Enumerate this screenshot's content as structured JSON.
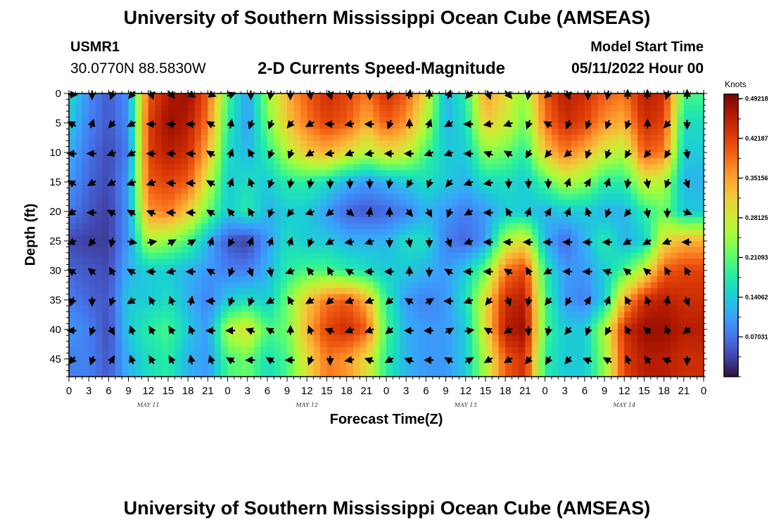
{
  "header": {
    "title": "University of Southern Mississippi Ocean Cube (AMSEAS)",
    "station": "USMR1",
    "coordinates": "30.0770N  88.5830W",
    "subtitle": "2-D Currents Speed-Magnitude",
    "model_start_label": "Model Start Time",
    "model_start_value": "05/11/2022 Hour 00"
  },
  "footer": {
    "title": "University of Southern Mississippi Ocean Cube (AMSEAS)"
  },
  "chart_data": {
    "type": "heatmap",
    "title": "2-D Currents Speed-Magnitude",
    "xlabel": "Forecast Time(Z)",
    "ylabel": "Depth (ft)",
    "x_range_hours": [
      0,
      96
    ],
    "y_range_ft": [
      0,
      48
    ],
    "y_ticks": [
      "0",
      "5",
      "10",
      "15",
      "20",
      "25",
      "30",
      "35",
      "40",
      "45"
    ],
    "x_ticks": [
      "0",
      "3",
      "6",
      "9",
      "12",
      "15",
      "18",
      "21",
      "0",
      "3",
      "6",
      "9",
      "12",
      "15",
      "18",
      "21",
      "0",
      "3",
      "6",
      "9",
      "12",
      "15",
      "18",
      "21",
      "0",
      "3",
      "6",
      "9",
      "12",
      "15",
      "18",
      "21",
      "0"
    ],
    "day_labels": [
      {
        "label": "MAY 11",
        "hour": 12
      },
      {
        "label": "MAY 12",
        "hour": 36
      },
      {
        "label": "MAY 13",
        "hour": 60
      },
      {
        "label": "MAY 14",
        "hour": 84
      }
    ],
    "colorbar": {
      "units": "Knots",
      "min": 0.0,
      "max": 0.5,
      "labels": [
        "0.49218",
        "0.42187",
        "0.35156",
        "0.28125",
        "0.21093",
        "0.14062",
        "0.07031"
      ],
      "colors": [
        "#30123b",
        "#4145ab",
        "#4675ed",
        "#39a2fc",
        "#1bcfd4",
        "#24eca6",
        "#61fc6c",
        "#a4fc3b",
        "#d1e834",
        "#f3c63a",
        "#fe9b2d",
        "#f36315",
        "#d93806",
        "#b11901",
        "#7a0402"
      ]
    },
    "depths_ft": [
      0,
      5,
      10,
      15,
      20,
      25,
      30,
      35,
      40,
      45
    ],
    "hours": [
      0,
      3,
      6,
      9,
      12,
      15,
      18,
      21,
      24,
      27,
      30,
      33,
      36,
      39,
      42,
      45,
      48,
      51,
      54,
      57,
      60,
      63,
      66,
      69,
      72,
      75,
      78,
      81,
      84,
      87,
      90,
      93
    ],
    "speed_knots": [
      [
        0.16,
        0.09,
        0.05,
        0.1,
        0.4,
        0.46,
        0.48,
        0.4,
        0.2,
        0.1,
        0.24,
        0.34,
        0.4,
        0.44,
        0.42,
        0.38,
        0.44,
        0.4,
        0.3,
        0.12,
        0.18,
        0.36,
        0.3,
        0.24,
        0.4,
        0.46,
        0.44,
        0.4,
        0.38,
        0.46,
        0.44,
        0.2
      ],
      [
        0.14,
        0.08,
        0.05,
        0.09,
        0.42,
        0.48,
        0.46,
        0.38,
        0.18,
        0.1,
        0.22,
        0.32,
        0.38,
        0.42,
        0.4,
        0.34,
        0.4,
        0.36,
        0.26,
        0.12,
        0.16,
        0.32,
        0.28,
        0.22,
        0.38,
        0.44,
        0.42,
        0.36,
        0.34,
        0.44,
        0.42,
        0.16
      ],
      [
        0.12,
        0.07,
        0.04,
        0.08,
        0.42,
        0.46,
        0.44,
        0.34,
        0.16,
        0.12,
        0.18,
        0.26,
        0.32,
        0.34,
        0.3,
        0.26,
        0.3,
        0.28,
        0.2,
        0.14,
        0.14,
        0.24,
        0.22,
        0.18,
        0.32,
        0.38,
        0.34,
        0.28,
        0.26,
        0.4,
        0.38,
        0.14
      ],
      [
        0.1,
        0.06,
        0.04,
        0.1,
        0.4,
        0.42,
        0.4,
        0.28,
        0.14,
        0.16,
        0.14,
        0.18,
        0.18,
        0.16,
        0.12,
        0.1,
        0.12,
        0.14,
        0.16,
        0.14,
        0.12,
        0.16,
        0.16,
        0.14,
        0.2,
        0.26,
        0.24,
        0.18,
        0.18,
        0.28,
        0.26,
        0.12
      ],
      [
        0.08,
        0.05,
        0.03,
        0.1,
        0.36,
        0.38,
        0.32,
        0.22,
        0.14,
        0.18,
        0.12,
        0.14,
        0.14,
        0.1,
        0.06,
        0.05,
        0.06,
        0.08,
        0.12,
        0.1,
        0.08,
        0.1,
        0.14,
        0.14,
        0.12,
        0.14,
        0.14,
        0.12,
        0.12,
        0.18,
        0.22,
        0.14
      ],
      [
        0.04,
        0.03,
        0.03,
        0.1,
        0.26,
        0.24,
        0.2,
        0.12,
        0.05,
        0.03,
        0.1,
        0.16,
        0.14,
        0.14,
        0.12,
        0.12,
        0.12,
        0.16,
        0.16,
        0.08,
        0.06,
        0.1,
        0.26,
        0.3,
        0.12,
        0.06,
        0.12,
        0.18,
        0.12,
        0.14,
        0.3,
        0.34
      ],
      [
        0.06,
        0.05,
        0.04,
        0.12,
        0.14,
        0.14,
        0.12,
        0.1,
        0.08,
        0.08,
        0.12,
        0.18,
        0.2,
        0.2,
        0.18,
        0.16,
        0.14,
        0.14,
        0.12,
        0.1,
        0.14,
        0.22,
        0.38,
        0.42,
        0.18,
        0.1,
        0.1,
        0.14,
        0.2,
        0.28,
        0.4,
        0.42
      ],
      [
        0.08,
        0.06,
        0.05,
        0.14,
        0.14,
        0.16,
        0.12,
        0.08,
        0.14,
        0.16,
        0.14,
        0.22,
        0.32,
        0.38,
        0.4,
        0.34,
        0.18,
        0.1,
        0.08,
        0.1,
        0.16,
        0.3,
        0.44,
        0.46,
        0.2,
        0.1,
        0.08,
        0.14,
        0.34,
        0.44,
        0.46,
        0.44
      ],
      [
        0.1,
        0.08,
        0.04,
        0.14,
        0.18,
        0.2,
        0.14,
        0.1,
        0.26,
        0.3,
        0.2,
        0.22,
        0.34,
        0.42,
        0.44,
        0.4,
        0.2,
        0.12,
        0.1,
        0.1,
        0.14,
        0.3,
        0.46,
        0.48,
        0.2,
        0.14,
        0.14,
        0.26,
        0.44,
        0.48,
        0.48,
        0.46
      ],
      [
        0.08,
        0.08,
        0.05,
        0.12,
        0.16,
        0.18,
        0.12,
        0.1,
        0.2,
        0.22,
        0.16,
        0.2,
        0.3,
        0.38,
        0.36,
        0.3,
        0.18,
        0.12,
        0.1,
        0.1,
        0.14,
        0.26,
        0.4,
        0.44,
        0.18,
        0.14,
        0.14,
        0.24,
        0.42,
        0.46,
        0.46,
        0.44
      ]
    ],
    "direction_deg": [
      [
        90,
        180,
        200,
        220,
        160,
        140,
        120,
        110,
        70,
        180,
        190,
        180,
        170,
        160,
        170,
        180,
        200,
        10,
        0,
        20,
        220,
        160,
        140,
        190,
        230,
        160,
        180,
        190,
        0,
        0,
        200,
        0
      ],
      [
        300,
        20,
        220,
        240,
        270,
        270,
        270,
        300,
        10,
        200,
        200,
        220,
        240,
        270,
        260,
        270,
        200,
        0,
        20,
        240,
        270,
        260,
        250,
        200,
        300,
        200,
        200,
        200,
        200,
        0,
        220,
        180
      ],
      [
        270,
        270,
        250,
        240,
        270,
        270,
        270,
        300,
        20,
        330,
        200,
        200,
        240,
        260,
        250,
        260,
        270,
        270,
        250,
        250,
        270,
        290,
        300,
        210,
        220,
        230,
        200,
        200,
        210,
        220,
        210,
        170
      ],
      [
        300,
        240,
        240,
        250,
        250,
        270,
        270,
        300,
        20,
        340,
        200,
        190,
        190,
        180,
        180,
        180,
        190,
        210,
        200,
        220,
        250,
        260,
        180,
        180,
        180,
        20,
        30,
        20,
        190,
        170,
        200,
        160
      ],
      [
        240,
        270,
        300,
        300,
        290,
        270,
        270,
        300,
        320,
        330,
        200,
        220,
        250,
        230,
        130,
        10,
        0,
        140,
        150,
        200,
        240,
        270,
        330,
        20,
        30,
        20,
        340,
        200,
        220,
        170,
        180,
        110
      ],
      [
        250,
        220,
        190,
        100,
        80,
        60,
        60,
        20,
        210,
        20,
        20,
        20,
        200,
        240,
        260,
        250,
        180,
        170,
        180,
        160,
        250,
        270,
        270,
        270,
        270,
        270,
        270,
        270,
        240,
        240,
        250,
        270
      ],
      [
        300,
        310,
        330,
        300,
        270,
        260,
        270,
        300,
        200,
        160,
        170,
        250,
        320,
        330,
        300,
        270,
        270,
        0,
        180,
        300,
        270,
        270,
        300,
        330,
        240,
        270,
        270,
        290,
        310,
        310,
        330,
        330
      ],
      [
        200,
        180,
        200,
        240,
        330,
        340,
        10,
        270,
        200,
        200,
        240,
        330,
        240,
        230,
        250,
        250,
        230,
        300,
        60,
        270,
        250,
        220,
        160,
        190,
        220,
        210,
        30,
        20,
        330,
        340,
        10,
        160
      ],
      [
        270,
        200,
        150,
        340,
        330,
        330,
        340,
        270,
        270,
        290,
        300,
        0,
        340,
        290,
        250,
        250,
        230,
        270,
        270,
        60,
        80,
        300,
        240,
        180,
        190,
        220,
        200,
        210,
        330,
        310,
        340,
        230
      ],
      [
        220,
        200,
        30,
        340,
        330,
        330,
        350,
        340,
        300,
        270,
        300,
        270,
        200,
        180,
        260,
        290,
        240,
        290,
        270,
        300,
        60,
        240,
        240,
        220,
        210,
        220,
        290,
        300,
        340,
        320,
        290,
        180
      ]
    ]
  }
}
